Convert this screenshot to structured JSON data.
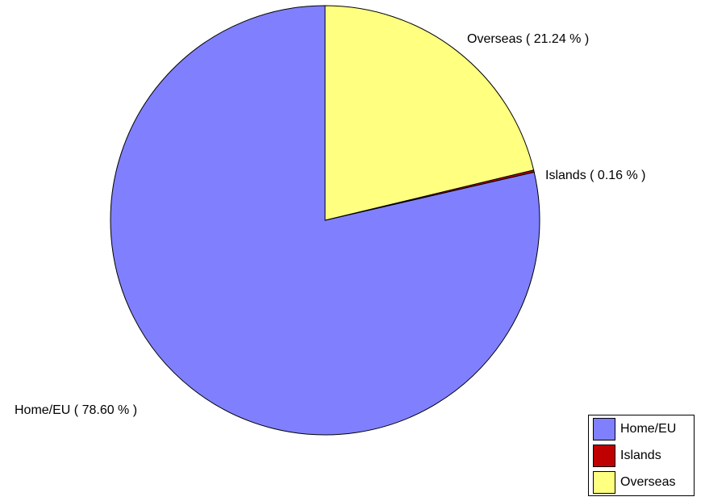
{
  "chart_data": {
    "type": "pie",
    "start_angle_deg": 0,
    "direction": "clockwise",
    "legend_position": "bottom-right",
    "slices": [
      {
        "label": "Home/EU",
        "value": 78.6,
        "display": "Home/EU  ( 78.60 % )",
        "color": "#8080ff"
      },
      {
        "label": "Islands",
        "value": 0.16,
        "display": "Islands  ( 0.16 % )",
        "color": "#c00000"
      },
      {
        "label": "Overseas",
        "value": 21.24,
        "display": "Overseas  ( 21.24 % )",
        "color": "#ffff80"
      }
    ]
  }
}
